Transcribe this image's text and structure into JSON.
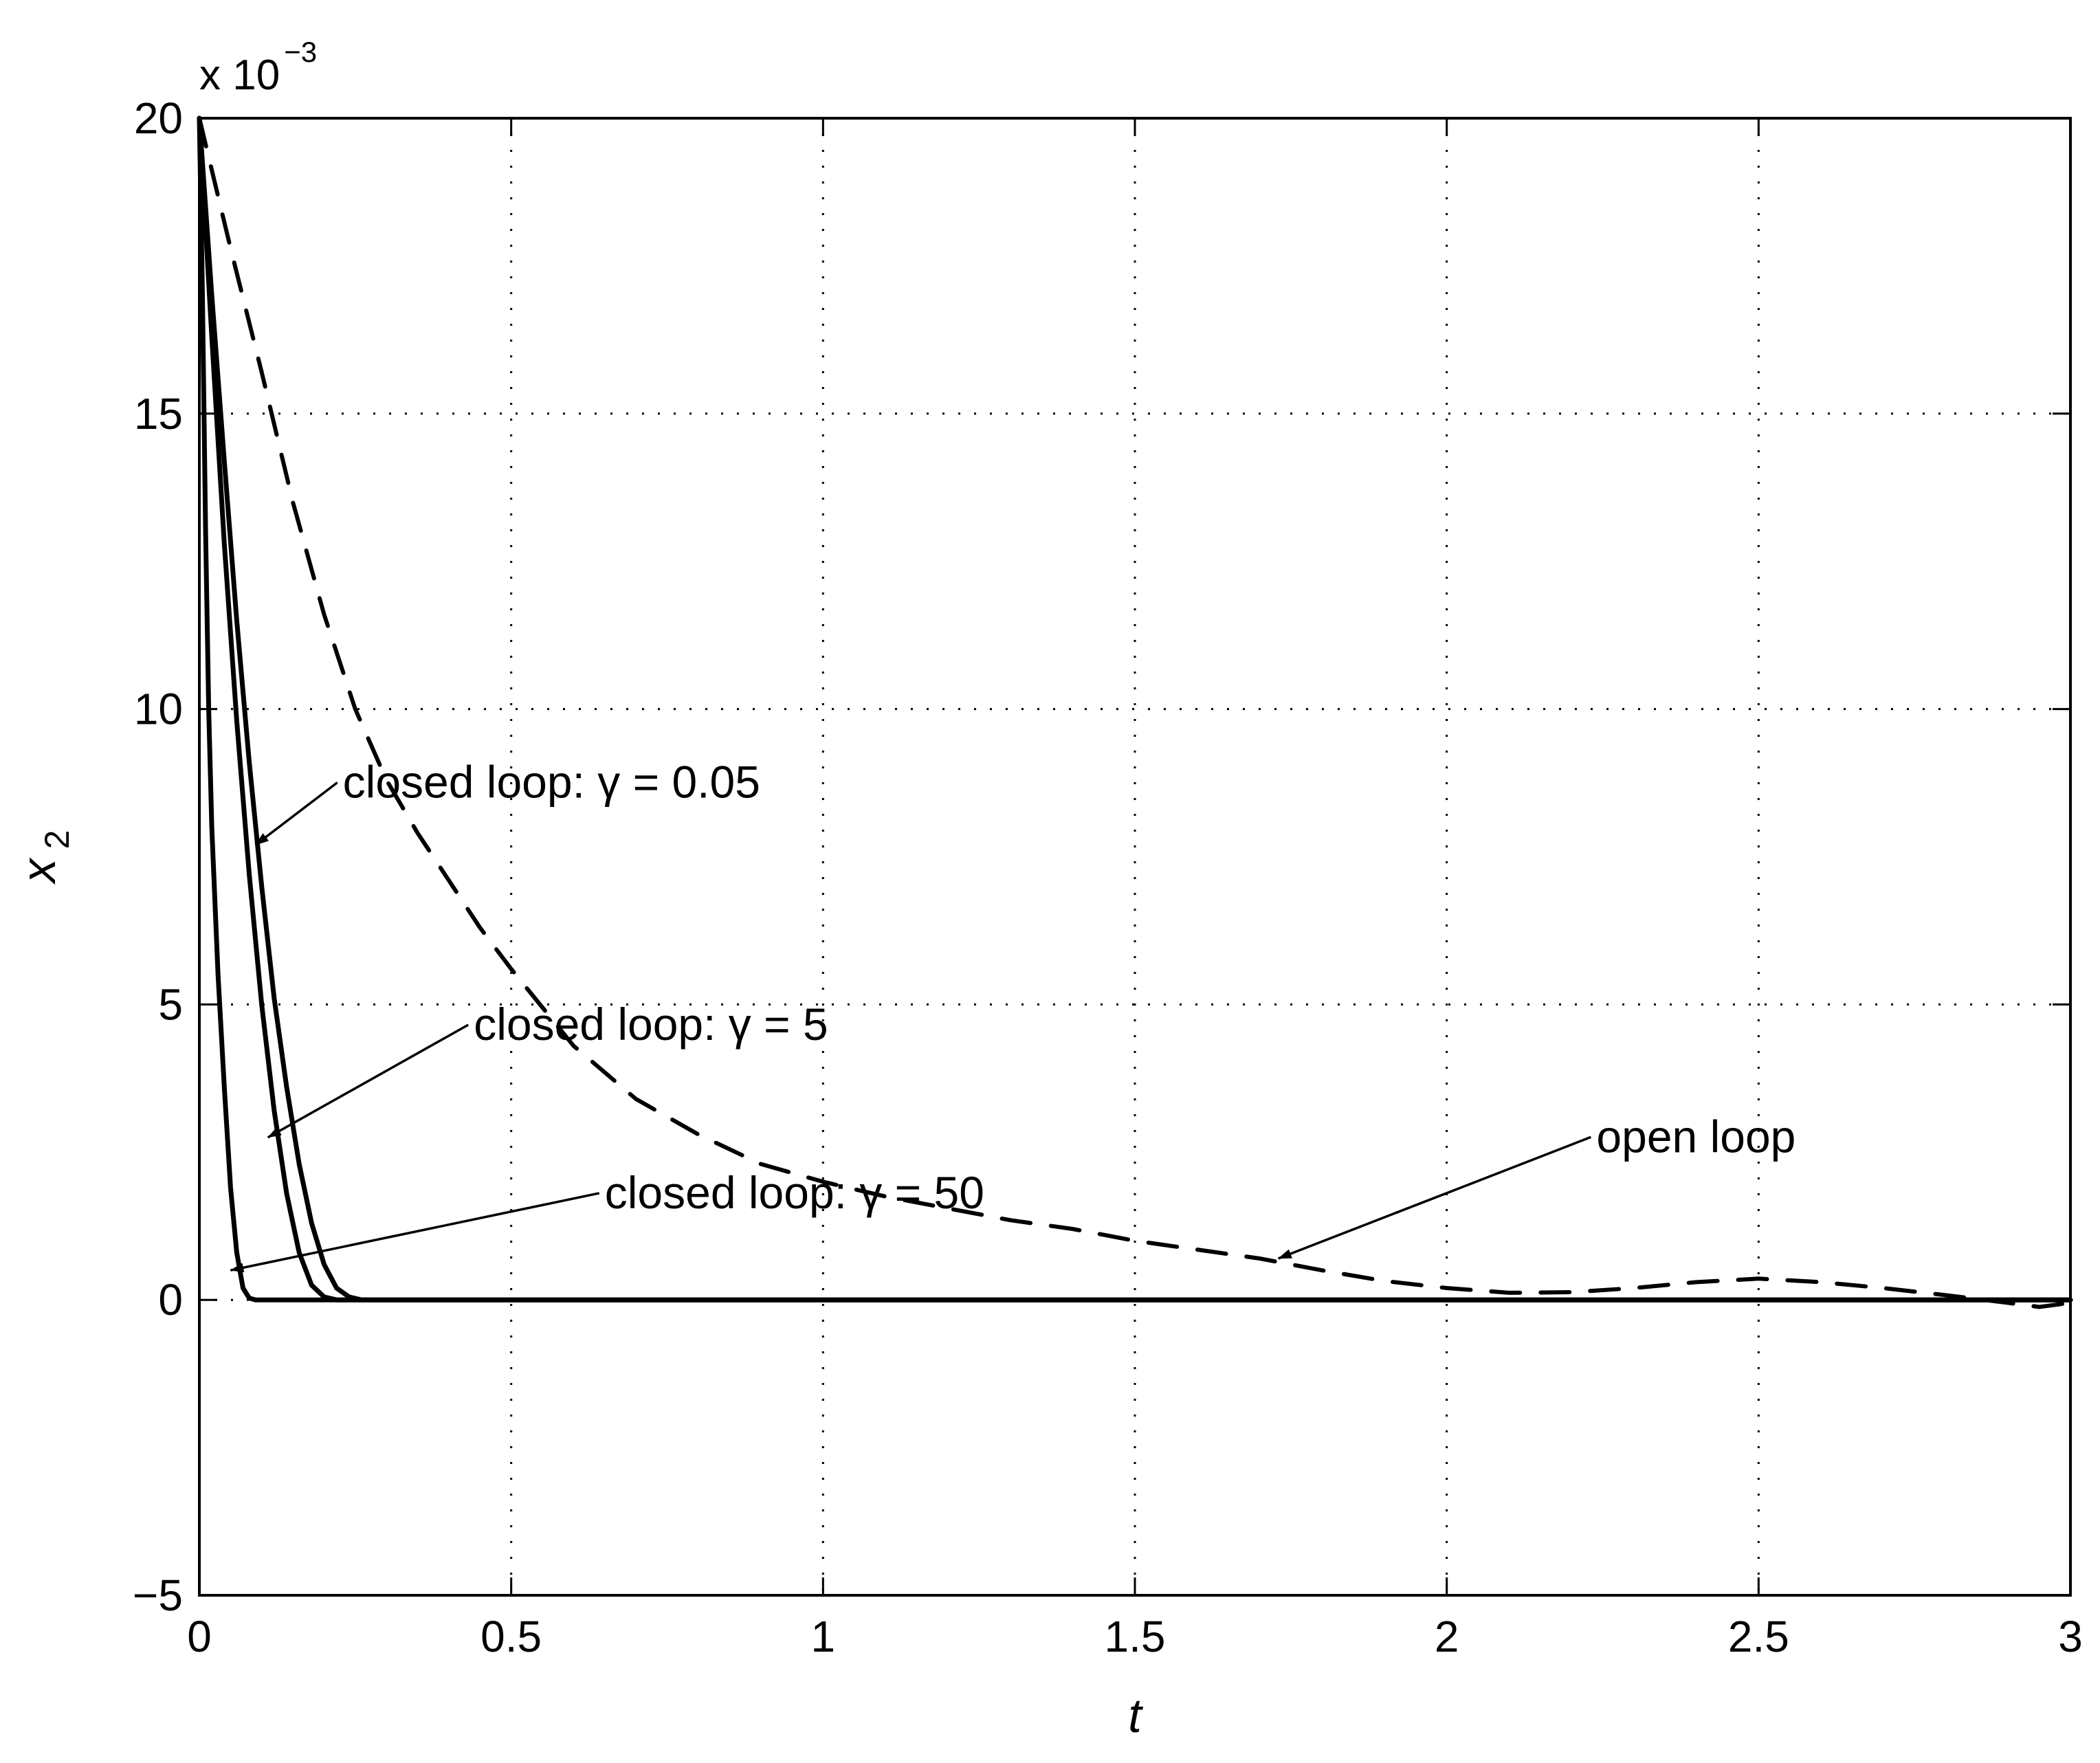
{
  "chart_data": {
    "type": "line",
    "title": "",
    "xlabel": "t",
    "ylabel": {
      "base": "x",
      "sub": "2"
    },
    "xlim": [
      0,
      3
    ],
    "ylim": [
      -5,
      20
    ],
    "y_scale_note": {
      "base": "x 10",
      "exponent": "−3"
    },
    "grid": true,
    "grid_style": "dotted",
    "x_ticks": [
      "0",
      "0.5",
      "1",
      "1.5",
      "2",
      "2.5",
      "3"
    ],
    "x_tick_values": [
      0,
      0.5,
      1,
      1.5,
      2,
      2.5,
      3
    ],
    "y_ticks": [
      "−5",
      "0",
      "5",
      "10",
      "15",
      "20"
    ],
    "y_tick_values": [
      -5,
      0,
      5,
      10,
      15,
      20
    ],
    "series": [
      {
        "style": "dashed",
        "color": "#000000",
        "x": [
          0,
          0.05,
          0.1,
          0.15,
          0.2,
          0.25,
          0.3,
          0.35,
          0.4,
          0.45,
          0.5,
          0.6,
          0.7,
          0.8,
          0.9,
          1.0,
          1.1,
          1.2,
          1.3,
          1.4,
          1.5,
          1.6,
          1.7,
          1.8,
          1.9,
          2.0,
          2.1,
          2.2,
          2.3,
          2.4,
          2.5,
          2.6,
          2.7,
          2.8,
          2.9,
          2.95,
          3.0
        ],
        "y": [
          20,
          17.8,
          15.7,
          13.5,
          11.6,
          10.0,
          8.8,
          7.9,
          7.1,
          6.3,
          5.6,
          4.3,
          3.4,
          2.8,
          2.3,
          2.0,
          1.75,
          1.55,
          1.35,
          1.2,
          1.0,
          0.85,
          0.7,
          0.5,
          0.32,
          0.2,
          0.12,
          0.13,
          0.2,
          0.3,
          0.36,
          0.3,
          0.2,
          0.08,
          -0.05,
          -0.12,
          -0.05
        ]
      },
      {
        "style": "solid",
        "color": "#000000",
        "x": [
          0,
          0.02,
          0.04,
          0.06,
          0.08,
          0.1,
          0.12,
          0.14,
          0.16,
          0.18,
          0.2,
          0.22,
          0.24,
          0.26,
          0.3,
          3.0
        ],
        "y": [
          20,
          17.0,
          14.2,
          11.5,
          9.1,
          7.0,
          5.1,
          3.6,
          2.3,
          1.3,
          0.6,
          0.2,
          0.05,
          0,
          0,
          0
        ]
      },
      {
        "style": "solid",
        "color": "#000000",
        "x": [
          0,
          0.02,
          0.04,
          0.06,
          0.08,
          0.1,
          0.12,
          0.14,
          0.16,
          0.18,
          0.2,
          0.22,
          3.0
        ],
        "y": [
          20,
          16.3,
          12.8,
          9.8,
          7.2,
          5.0,
          3.2,
          1.8,
          0.8,
          0.25,
          0.05,
          0,
          0
        ]
      },
      {
        "style": "solid",
        "color": "#000000",
        "x": [
          0,
          0.005,
          0.01,
          0.015,
          0.02,
          0.03,
          0.04,
          0.05,
          0.06,
          0.07,
          0.08,
          0.09,
          3.0
        ],
        "y": [
          20,
          17,
          13,
          10,
          8,
          5.5,
          3.6,
          1.9,
          0.8,
          0.2,
          0.03,
          0,
          0
        ]
      }
    ],
    "annotations": [
      {
        "text": "closed loop: γ = 0.05",
        "x": 0.23,
        "y": 8.5,
        "arrow_to": [
          0.09,
          7.7
        ]
      },
      {
        "text": "closed loop: γ = 5",
        "x": 0.44,
        "y": 4.4,
        "arrow_to": [
          0.11,
          2.75
        ]
      },
      {
        "text": "closed loop: γ = 50",
        "x": 0.65,
        "y": 1.55,
        "arrow_to": [
          0.05,
          0.5
        ]
      },
      {
        "text": "open loop",
        "x": 2.24,
        "y": 2.5,
        "arrow_to": [
          1.73,
          0.7
        ]
      }
    ]
  }
}
